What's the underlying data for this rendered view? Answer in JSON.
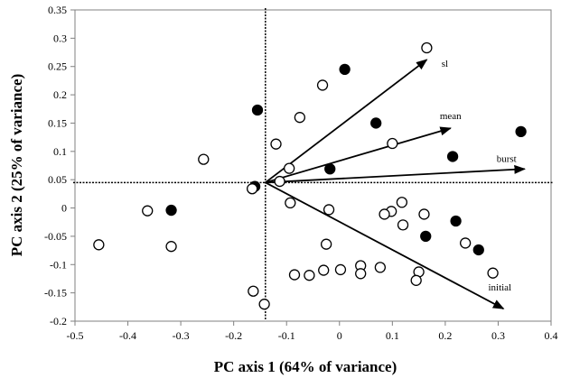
{
  "chart_data": {
    "type": "scatter",
    "xlabel": "PC axis 1 (64% of variance)",
    "ylabel": "PC axis 2 (25% of variance)",
    "xlim": [
      -0.5,
      0.4
    ],
    "ylim": [
      -0.2,
      0.35
    ],
    "x_ticks": [
      "-0.5",
      "-0.4",
      "-0.3",
      "-0.2",
      "-0.1",
      "0",
      "0.1",
      "0.2",
      "0.3",
      "0.4"
    ],
    "y_ticks": [
      "0.35",
      "0.3",
      "0.25",
      "0.2",
      "0.15",
      "0.1",
      "0.05",
      "0",
      "-0.05",
      "-0.1",
      "-0.15",
      "-0.2"
    ],
    "grid": false,
    "reference_lines": {
      "x": -0.14,
      "y": 0.045
    },
    "series": [
      {
        "marker": "filled-circle",
        "points": [
          [
            -0.318,
            -0.004
          ],
          [
            -0.155,
            0.173
          ],
          [
            -0.16,
            0.038
          ],
          [
            0.01,
            0.245
          ],
          [
            -0.018,
            0.069
          ],
          [
            0.069,
            0.15
          ],
          [
            0.214,
            0.091
          ],
          [
            0.343,
            0.135
          ],
          [
            0.22,
            -0.023
          ],
          [
            0.163,
            -0.05
          ],
          [
            0.263,
            -0.074
          ]
        ]
      },
      {
        "marker": "open-circle",
        "points": [
          [
            -0.455,
            -0.065
          ],
          [
            -0.363,
            -0.005
          ],
          [
            -0.318,
            -0.068
          ],
          [
            -0.257,
            0.086
          ],
          [
            -0.165,
            0.034
          ],
          [
            -0.12,
            0.113
          ],
          [
            -0.075,
            0.16
          ],
          [
            -0.095,
            0.07
          ],
          [
            -0.113,
            0.047
          ],
          [
            -0.093,
            0.009
          ],
          [
            -0.032,
            0.217
          ],
          [
            0.165,
            0.283
          ],
          [
            0.1,
            0.114
          ],
          [
            -0.02,
            -0.003
          ],
          [
            -0.025,
            -0.064
          ],
          [
            0.118,
            0.01
          ],
          [
            0.098,
            -0.006
          ],
          [
            0.085,
            -0.011
          ],
          [
            0.12,
            -0.03
          ],
          [
            0.16,
            -0.011
          ],
          [
            0.238,
            -0.062
          ],
          [
            0.29,
            -0.115
          ],
          [
            0.077,
            -0.105
          ],
          [
            0.04,
            -0.102
          ],
          [
            0.04,
            -0.116
          ],
          [
            0.002,
            -0.109
          ],
          [
            -0.03,
            -0.11
          ],
          [
            -0.057,
            -0.119
          ],
          [
            -0.085,
            -0.118
          ],
          [
            0.15,
            -0.113
          ],
          [
            0.145,
            -0.128
          ],
          [
            -0.163,
            -0.147
          ],
          [
            -0.142,
            -0.17
          ]
        ]
      }
    ],
    "vectors": [
      {
        "label": "sl",
        "from": [
          -0.14,
          0.045
        ],
        "to": [
          0.165,
          0.262
        ]
      },
      {
        "label": "mean",
        "from": [
          -0.14,
          0.045
        ],
        "to": [
          0.21,
          0.141
        ]
      },
      {
        "label": "burst",
        "from": [
          -0.14,
          0.045
        ],
        "to": [
          0.35,
          0.069
        ]
      },
      {
        "label": "initial",
        "from": [
          -0.14,
          0.045
        ],
        "to": [
          0.31,
          -0.178
        ]
      }
    ]
  }
}
